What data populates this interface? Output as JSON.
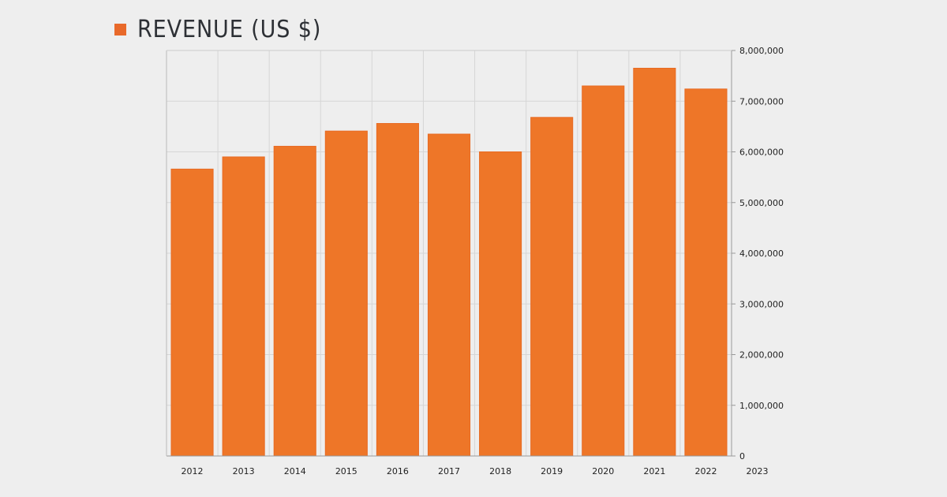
{
  "chart_data": {
    "type": "bar",
    "title": "",
    "xlabel": "",
    "ylabel": "",
    "legend": {
      "position": "top-left",
      "entries": [
        "REVENUE (US $)"
      ]
    },
    "categories": [
      "2012",
      "2013",
      "2014",
      "2015",
      "2016",
      "2017",
      "2018",
      "2019",
      "2020",
      "2021",
      "2022"
    ],
    "x_tick_labels": [
      "2012",
      "2013",
      "2014",
      "2015",
      "2016",
      "2017",
      "2018",
      "2019",
      "2020",
      "2021",
      "2022",
      "2023"
    ],
    "series": [
      {
        "name": "REVENUE (US $)",
        "color": "#ee7628",
        "values": [
          5660000,
          5900000,
          6110000,
          6410000,
          6560000,
          6350000,
          6000000,
          6680000,
          7300000,
          7650000,
          7240000
        ]
      }
    ],
    "ylim": [
      0,
      8000000
    ],
    "y_ticks": [
      0,
      1000000,
      2000000,
      3000000,
      4000000,
      5000000,
      6000000,
      7000000,
      8000000
    ],
    "y_tick_labels": [
      "0",
      "1,000,000",
      "2,000,000",
      "3,000,000",
      "4,000,000",
      "5,000,000",
      "6,000,000",
      "7,000,000",
      "8,000,000"
    ],
    "y_axis_side": "right",
    "grid": true
  }
}
